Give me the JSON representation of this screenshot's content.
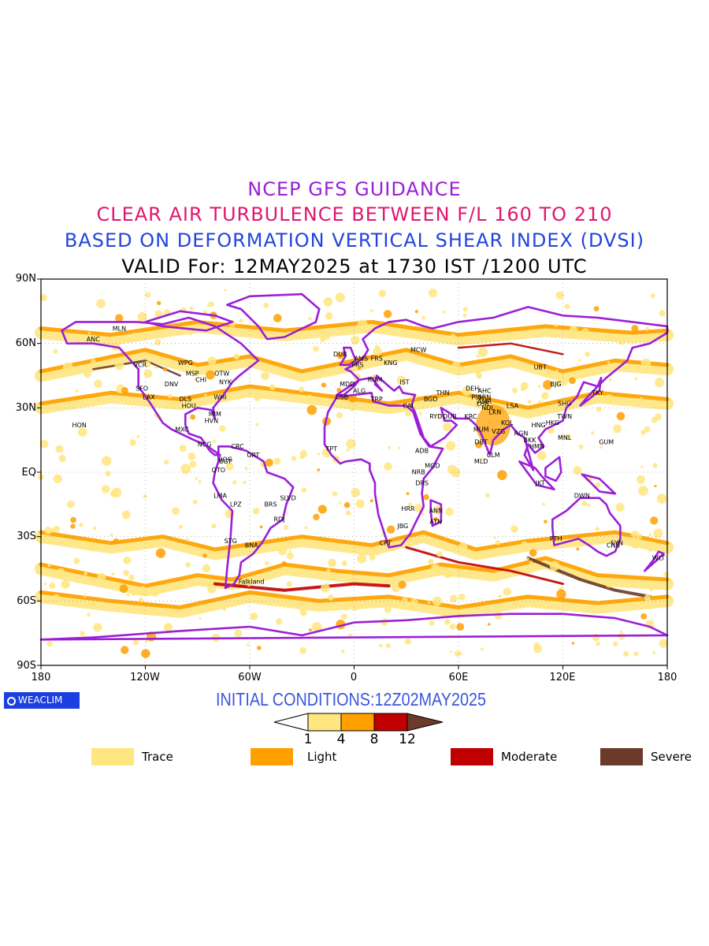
{
  "titles": {
    "line1": "NCEP GFS GUIDANCE",
    "line2": "CLEAR AIR TURBULENCE BETWEEN F/L 160 TO 210",
    "line3": "BASED ON DEFORMATION VERTICAL SHEAR INDEX (DVSI)",
    "line4": "VALID For: 12MAY2025 at 1730 IST /1200 UTC"
  },
  "axes": {
    "y_labels": [
      "90N",
      "60N",
      "30N",
      "EQ",
      "30S",
      "60S",
      "90S"
    ],
    "x_labels": [
      "180",
      "120W",
      "60W",
      "0",
      "60E",
      "120E",
      "180"
    ]
  },
  "brand": {
    "label": "WEACLIM"
  },
  "initial_conditions": "INITIAL CONDITIONS:12Z02MAY2025",
  "colorbar": {
    "ticks": [
      "1",
      "4",
      "8",
      "12"
    ],
    "colors": [
      "#ffe680",
      "#ffa000",
      "#c00000",
      "#6b3a2a"
    ]
  },
  "legend": [
    {
      "label": "Trace",
      "color": "#ffe680"
    },
    {
      "label": "Light",
      "color": "#ffa000"
    },
    {
      "label": "Moderate",
      "color": "#c00000"
    },
    {
      "label": "Severe",
      "color": "#6b3a2a"
    }
  ],
  "colors": {
    "coast": "#9b1fd6",
    "border": "#b04fd0"
  },
  "stations": [
    {
      "code": "ANC",
      "lon": -150,
      "lat": 61
    },
    {
      "code": "MLN",
      "lon": -135,
      "lat": 66
    },
    {
      "code": "VCR",
      "lon": -123,
      "lat": 49
    },
    {
      "code": "WPG",
      "lon": -97,
      "lat": 50
    },
    {
      "code": "MSP",
      "lon": -93,
      "lat": 45
    },
    {
      "code": "OTW",
      "lon": -76,
      "lat": 45
    },
    {
      "code": "CHI",
      "lon": -88,
      "lat": 42
    },
    {
      "code": "DNV",
      "lon": -105,
      "lat": 40
    },
    {
      "code": "NYK",
      "lon": -74,
      "lat": 41
    },
    {
      "code": "SFO",
      "lon": -122,
      "lat": 38
    },
    {
      "code": "LAX",
      "lon": -118,
      "lat": 34
    },
    {
      "code": "DLS",
      "lon": -97,
      "lat": 33
    },
    {
      "code": "HOU",
      "lon": -95,
      "lat": 30
    },
    {
      "code": "WHI",
      "lon": -77,
      "lat": 34
    },
    {
      "code": "MIM",
      "lon": -80,
      "lat": 26
    },
    {
      "code": "HVN",
      "lon": -82,
      "lat": 23
    },
    {
      "code": "MXC",
      "lon": -99,
      "lat": 19
    },
    {
      "code": "HON",
      "lon": -158,
      "lat": 21
    },
    {
      "code": "NCG",
      "lon": -86,
      "lat": 12
    },
    {
      "code": "CRC",
      "lon": -67,
      "lat": 11
    },
    {
      "code": "BOG",
      "lon": -74,
      "lat": 5
    },
    {
      "code": "BGT",
      "lon": -74,
      "lat": 4
    },
    {
      "code": "GRT",
      "lon": -58,
      "lat": 7
    },
    {
      "code": "QTO",
      "lon": -78,
      "lat": 0
    },
    {
      "code": "LMA",
      "lon": -77,
      "lat": -12
    },
    {
      "code": "LPZ",
      "lon": -68,
      "lat": -16
    },
    {
      "code": "BRS",
      "lon": -48,
      "lat": -16
    },
    {
      "code": "SLVD",
      "lon": -38,
      "lat": -13
    },
    {
      "code": "RDJ",
      "lon": -43,
      "lat": -23
    },
    {
      "code": "STG",
      "lon": -71,
      "lat": -33
    },
    {
      "code": "BNA",
      "lon": -59,
      "lat": -35
    },
    {
      "code": "Falkland",
      "lon": -59,
      "lat": -52
    },
    {
      "code": "DUB",
      "lon": -8,
      "lat": 54
    },
    {
      "code": "AMS",
      "lon": 4,
      "lat": 52
    },
    {
      "code": "FRS",
      "lon": 13,
      "lat": 52
    },
    {
      "code": "KNG",
      "lon": 21,
      "lat": 50
    },
    {
      "code": "MCW",
      "lon": 37,
      "lat": 56
    },
    {
      "code": "PRS",
      "lon": 2,
      "lat": 49
    },
    {
      "code": "ROM",
      "lon": 12,
      "lat": 42
    },
    {
      "code": "IST",
      "lon": 29,
      "lat": 41
    },
    {
      "code": "MDD",
      "lon": -4,
      "lat": 40
    },
    {
      "code": "ALG",
      "lon": 3,
      "lat": 37
    },
    {
      "code": "CSB",
      "lon": -7,
      "lat": 34
    },
    {
      "code": "TRP",
      "lon": 13,
      "lat": 33
    },
    {
      "code": "CAI",
      "lon": 31,
      "lat": 30
    },
    {
      "code": "BGD",
      "lon": 44,
      "lat": 33
    },
    {
      "code": "THN",
      "lon": 51,
      "lat": 36
    },
    {
      "code": "RYD",
      "lon": 47,
      "lat": 25
    },
    {
      "code": "DUB",
      "lon": 55,
      "lat": 25
    },
    {
      "code": "KRC",
      "lon": 67,
      "lat": 25
    },
    {
      "code": "DEH",
      "lon": 68,
      "lat": 38
    },
    {
      "code": "PSH",
      "lon": 71,
      "lat": 34
    },
    {
      "code": "AHC",
      "lon": 75,
      "lat": 37
    },
    {
      "code": "SRN",
      "lon": 75,
      "lat": 34
    },
    {
      "code": "AMR",
      "lon": 75,
      "lat": 32
    },
    {
      "code": "LHR",
      "lon": 74,
      "lat": 31
    },
    {
      "code": "NDL",
      "lon": 77,
      "lat": 29
    },
    {
      "code": "LKN",
      "lon": 81,
      "lat": 27
    },
    {
      "code": "LSA",
      "lon": 91,
      "lat": 30
    },
    {
      "code": "MUM",
      "lon": 73,
      "lat": 19
    },
    {
      "code": "VZG",
      "lon": 83,
      "lat": 18
    },
    {
      "code": "KOL",
      "lon": 88,
      "lat": 22
    },
    {
      "code": "DBT",
      "lon": 73,
      "lat": 13
    },
    {
      "code": "CLM",
      "lon": 80,
      "lat": 7
    },
    {
      "code": "MLD",
      "lon": 73,
      "lat": 4
    },
    {
      "code": "RGN",
      "lon": 96,
      "lat": 17
    },
    {
      "code": "BKK",
      "lon": 101,
      "lat": 14
    },
    {
      "code": "HMN",
      "lon": 105,
      "lat": 11
    },
    {
      "code": "HNG",
      "lon": 106,
      "lat": 21
    },
    {
      "code": "HKG",
      "lon": 114,
      "lat": 22
    },
    {
      "code": "TWN",
      "lon": 121,
      "lat": 25
    },
    {
      "code": "SHG",
      "lon": 121,
      "lat": 31
    },
    {
      "code": "BJG",
      "lon": 116,
      "lat": 40
    },
    {
      "code": "UBT",
      "lon": 107,
      "lat": 48
    },
    {
      "code": "TKY",
      "lon": 140,
      "lat": 36
    },
    {
      "code": "MNL",
      "lon": 121,
      "lat": 15
    },
    {
      "code": "GUM",
      "lon": 145,
      "lat": 13
    },
    {
      "code": "JKT",
      "lon": 107,
      "lat": -6
    },
    {
      "code": "DWN",
      "lon": 131,
      "lat": -12
    },
    {
      "code": "PTH",
      "lon": 116,
      "lat": -32
    },
    {
      "code": "SYN",
      "lon": 151,
      "lat": -34
    },
    {
      "code": "CNB",
      "lon": 149,
      "lat": -35
    },
    {
      "code": "WLT",
      "lon": 175,
      "lat": -41
    },
    {
      "code": "TPT",
      "lon": -13,
      "lat": 10
    },
    {
      "code": "ADB",
      "lon": 39,
      "lat": 9
    },
    {
      "code": "MGD",
      "lon": 45,
      "lat": 2
    },
    {
      "code": "NRB",
      "lon": 37,
      "lat": -1
    },
    {
      "code": "DRS",
      "lon": 39,
      "lat": -6
    },
    {
      "code": "ANN",
      "lon": 47,
      "lat": -19
    },
    {
      "code": "HRR",
      "lon": 31,
      "lat": -18
    },
    {
      "code": "ATN",
      "lon": 47,
      "lat": -24
    },
    {
      "code": "JBG",
      "lon": 28,
      "lat": -26
    },
    {
      "code": "CPT",
      "lon": 18,
      "lat": -34
    }
  ]
}
